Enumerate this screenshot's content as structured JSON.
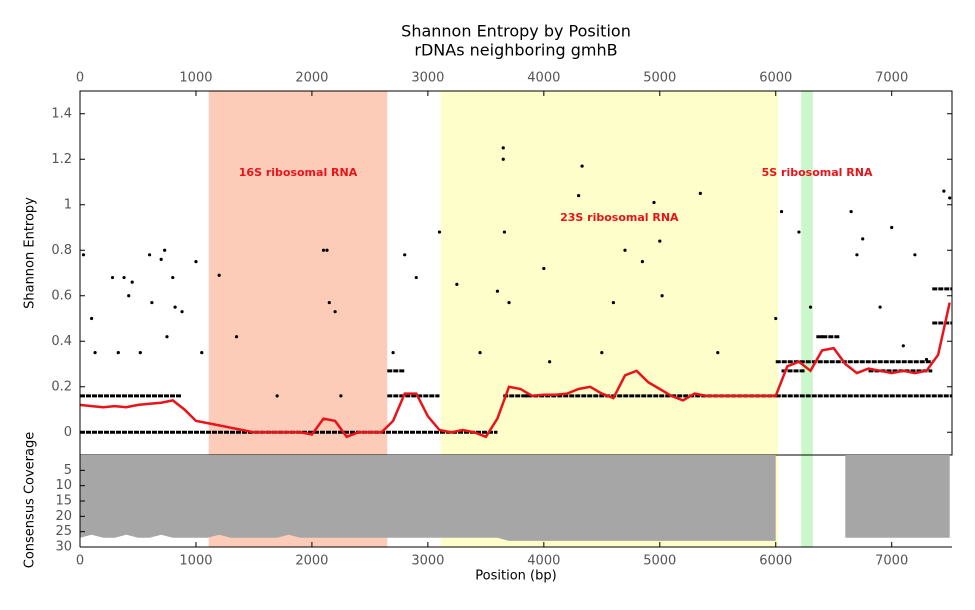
{
  "chart_data": [
    {
      "type": "scatter",
      "title": "Shannon Entropy by Position",
      "subtitle": "rDNAs neighboring gmhB",
      "y_label": "Shannon Entropy",
      "xlim": [
        0,
        7520
      ],
      "ylim": [
        -0.1,
        1.5
      ],
      "xticks": [
        0,
        1000,
        2000,
        3000,
        4000,
        5000,
        6000,
        7000
      ],
      "yticks": [
        0.0,
        0.2,
        0.4,
        0.6,
        0.8,
        1.0,
        1.2,
        1.4
      ],
      "regions": [
        {
          "label": "16S ribosomal RNA",
          "x": [
            1110,
            2650
          ],
          "color": "#fcbba1"
        },
        {
          "label": "23S ribosomal RNA",
          "x": [
            3110,
            6020
          ],
          "color": "#fdfdb8"
        },
        {
          "label": "5S ribosomal RNA",
          "x": [
            6220,
            6320
          ],
          "color": "#b9f5b9"
        }
      ],
      "region_label_color": "#e8141a",
      "points": {
        "color": "#000000",
        "x": [
          30,
          100,
          130,
          280,
          330,
          380,
          420,
          450,
          520,
          600,
          620,
          700,
          730,
          750,
          800,
          820,
          880,
          1000,
          1050,
          1200,
          1350,
          1700,
          2100,
          2130,
          2150,
          2200,
          2250,
          2700,
          2800,
          2900,
          3100,
          3250,
          3450,
          3600,
          3650,
          3650,
          3660,
          3700,
          3850,
          4000,
          4050,
          4300,
          4330,
          4500,
          4600,
          4700,
          4850,
          4950,
          5000,
          5020,
          5350,
          5500,
          6000,
          6050,
          6200,
          6300,
          6400,
          6650,
          6700,
          6750,
          6900,
          7000,
          7100,
          7200,
          7300,
          7450,
          7500
        ],
        "y": [
          0.78,
          0.5,
          0.35,
          0.68,
          0.35,
          0.68,
          0.6,
          0.66,
          0.35,
          0.78,
          0.57,
          0.76,
          0.8,
          0.42,
          0.68,
          0.55,
          0.53,
          0.75,
          0.35,
          0.69,
          0.42,
          0.16,
          0.8,
          0.8,
          0.57,
          0.53,
          0.16,
          0.35,
          0.78,
          0.68,
          0.88,
          0.65,
          0.35,
          0.62,
          1.25,
          1.2,
          0.88,
          0.57,
          0.16,
          0.72,
          0.31,
          1.04,
          1.17,
          0.35,
          0.57,
          0.8,
          0.75,
          1.01,
          0.84,
          0.6,
          1.05,
          0.35,
          0.5,
          0.97,
          0.88,
          0.55,
          0.42,
          0.97,
          0.78,
          0.85,
          0.55,
          0.9,
          0.38,
          0.78,
          0.32,
          1.06,
          1.03
        ]
      },
      "level_segments": [
        {
          "x": [
            0,
            3600
          ],
          "y": 0.0
        },
        {
          "x": [
            0,
            880
          ],
          "y": 0.16
        },
        {
          "x": [
            2650,
            3100
          ],
          "y": 0.16
        },
        {
          "x": [
            3650,
            6000
          ],
          "y": 0.16
        },
        {
          "x": [
            6000,
            7520
          ],
          "y": 0.16
        },
        {
          "x": [
            2650,
            2800
          ],
          "y": 0.27
        },
        {
          "x": [
            6000,
            7350
          ],
          "y": 0.31
        },
        {
          "x": [
            6050,
            6250
          ],
          "y": 0.27
        },
        {
          "x": [
            6800,
            7350
          ],
          "y": 0.27
        },
        {
          "x": [
            6350,
            6550
          ],
          "y": 0.42
        },
        {
          "x": [
            7350,
            7520
          ],
          "y": 0.63
        },
        {
          "x": [
            7350,
            7520
          ],
          "y": 0.48
        }
      ],
      "smooth": {
        "color": "#e8141a",
        "x": [
          0,
          100,
          200,
          300,
          400,
          500,
          600,
          700,
          800,
          900,
          1000,
          1100,
          1200,
          1300,
          1400,
          1500,
          1600,
          1700,
          1800,
          1900,
          2000,
          2100,
          2200,
          2300,
          2400,
          2500,
          2600,
          2700,
          2800,
          2900,
          3000,
          3100,
          3200,
          3300,
          3400,
          3500,
          3600,
          3700,
          3800,
          3900,
          4000,
          4100,
          4200,
          4300,
          4400,
          4500,
          4600,
          4700,
          4800,
          4900,
          5000,
          5100,
          5200,
          5300,
          5400,
          5500,
          5600,
          5700,
          5800,
          5900,
          6000,
          6100,
          6200,
          6300,
          6400,
          6500,
          6600,
          6700,
          6800,
          6900,
          7000,
          7100,
          7200,
          7300,
          7400,
          7500
        ],
        "values": [
          0.12,
          0.115,
          0.11,
          0.115,
          0.11,
          0.12,
          0.125,
          0.13,
          0.14,
          0.1,
          0.05,
          0.04,
          0.03,
          0.02,
          0.01,
          0,
          0,
          0,
          0,
          0,
          -0.01,
          0.06,
          0.05,
          -0.02,
          0,
          0,
          0,
          0.05,
          0.17,
          0.17,
          0.07,
          0.01,
          0,
          0.01,
          0,
          -0.02,
          0.06,
          0.2,
          0.19,
          0.16,
          0.165,
          0.165,
          0.17,
          0.19,
          0.2,
          0.17,
          0.15,
          0.25,
          0.27,
          0.22,
          0.19,
          0.16,
          0.14,
          0.17,
          0.16,
          0.16,
          0.16,
          0.16,
          0.16,
          0.16,
          0.16,
          0.29,
          0.31,
          0.27,
          0.36,
          0.37,
          0.3,
          0.26,
          0.28,
          0.27,
          0.26,
          0.27,
          0.26,
          0.27,
          0.34,
          0.57
        ]
      }
    },
    {
      "type": "area",
      "x_label": "Position (bp)",
      "y_label": "Consensus Coverage",
      "color": "#a6a6a6",
      "xlim": [
        0,
        7520
      ],
      "ylim": [
        0,
        30
      ],
      "inverted": true,
      "xticks": [
        0,
        1000,
        2000,
        3000,
        4000,
        5000,
        6000,
        7000
      ],
      "yticks": [
        5,
        10,
        15,
        20,
        25,
        30
      ],
      "x": [
        0,
        100,
        200,
        300,
        400,
        500,
        600,
        700,
        800,
        900,
        1000,
        1100,
        1200,
        1300,
        1400,
        1500,
        1600,
        1700,
        1800,
        1900,
        2000,
        2100,
        2200,
        2300,
        2400,
        2500,
        2600,
        2700,
        2800,
        2900,
        3000,
        3100,
        3200,
        3300,
        3400,
        3500,
        3600,
        3700,
        3800,
        3900,
        4000,
        4100,
        4200,
        4300,
        4400,
        4500,
        4600,
        4700,
        4800,
        4900,
        5000,
        5100,
        5200,
        5300,
        5400,
        5500,
        5600,
        5700,
        5800,
        5900,
        6000,
        6100,
        6200,
        6300,
        6400,
        6500,
        6600,
        6700,
        6800,
        6900,
        7000,
        7100,
        7200,
        7300,
        7400,
        7500
      ],
      "values": [
        27,
        26,
        27,
        27,
        26,
        27,
        27,
        26,
        27,
        27,
        27,
        27,
        26,
        27,
        27,
        27,
        27,
        27,
        26,
        27,
        27,
        27,
        27,
        27,
        27,
        27,
        27,
        27,
        27,
        27,
        27,
        27,
        27,
        27,
        27,
        27,
        27,
        28,
        28,
        28,
        28,
        28,
        28,
        28,
        28,
        28,
        28,
        28,
        28,
        28,
        28,
        28,
        28,
        28,
        28,
        28,
        28,
        28,
        28,
        28,
        28,
        null,
        null,
        null,
        null,
        null,
        27,
        27,
        27,
        27,
        27,
        27,
        27,
        27,
        27,
        27
      ]
    }
  ]
}
